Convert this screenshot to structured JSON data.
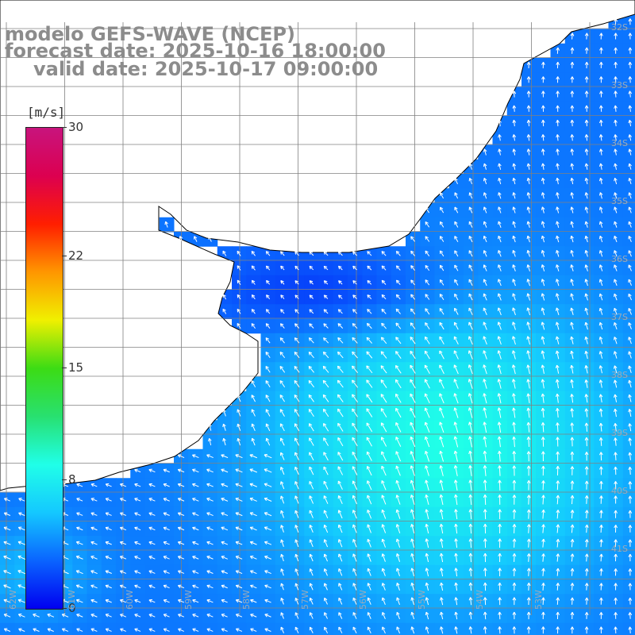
{
  "title": {
    "line1": "modelo GEFS-WAVE (NCEP)",
    "line2": "forecast date: 2025-10-16 18:00:00",
    "line3": "valid date: 2025-10-17 09:00:00"
  },
  "colorbar": {
    "unit": "[m/s]",
    "ticks": [
      {
        "label": "30",
        "value": 30
      },
      {
        "label": "22",
        "value": 22
      },
      {
        "label": "15",
        "value": 15
      },
      {
        "label": "8",
        "value": 8
      },
      {
        "label": "0",
        "value": 0
      }
    ],
    "stops": [
      "#0000f0",
      "#0a64ff",
      "#14c8ff",
      "#20ffe8",
      "#28e070",
      "#3cdc14",
      "#f0f000",
      "#ff9600",
      "#ff1e00",
      "#dc0050",
      "#c8147d"
    ]
  },
  "lat_labels": [
    "32S",
    "33S",
    "34S",
    "35S",
    "36S",
    "37S",
    "38S",
    "39S",
    "40S",
    "41S"
  ],
  "lon_labels": [
    "62W",
    "61W",
    "60W",
    "59W",
    "58W",
    "57W",
    "56W",
    "55W",
    "54W",
    "53W"
  ],
  "colors": {
    "land": "#ffffff",
    "coast": "#000000",
    "grid": "#808080",
    "arrow": "#ffffff"
  }
}
